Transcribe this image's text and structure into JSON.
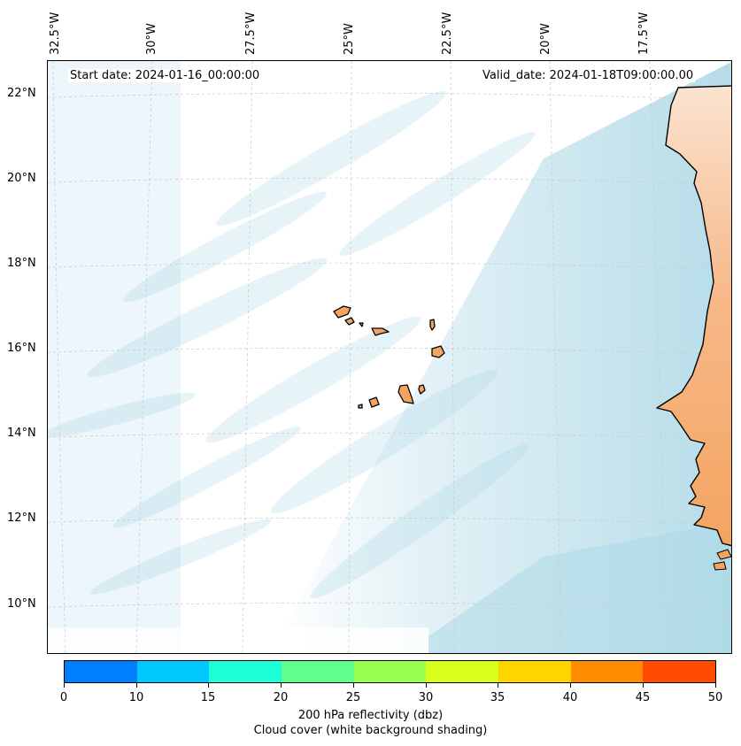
{
  "map": {
    "header": {
      "start_date": "Start date: 2024-01-16_00:00:00",
      "valid_date": "Valid_date: 2024-01-18T09:00:00.00"
    },
    "longitude_ticks": [
      "32.5°W",
      "30°W",
      "27.5°W",
      "25°W",
      "22.5°W",
      "20°W",
      "17.5°W"
    ],
    "latitude_ticks": [
      "22°N",
      "20°N",
      "18°N",
      "16°N",
      "14°N",
      "12°N",
      "10°N"
    ],
    "colors": {
      "cloud": "#add8e6",
      "land": "#f4a460",
      "coastline": "#000000",
      "grid": "#c8c8c8"
    }
  },
  "colorbar": {
    "ticks": [
      "0",
      "10",
      "15",
      "20",
      "25",
      "30",
      "35",
      "40",
      "45",
      "50"
    ],
    "colors": [
      "#0080ff",
      "#00c8ff",
      "#1effd8",
      "#5eff8a",
      "#96ff50",
      "#d8ff1a",
      "#ffd500",
      "#ff8c00",
      "#ff4a00"
    ],
    "label": "200 hPa reflectivity (dbz)",
    "sublabel": "Cloud cover (white background shading)"
  }
}
